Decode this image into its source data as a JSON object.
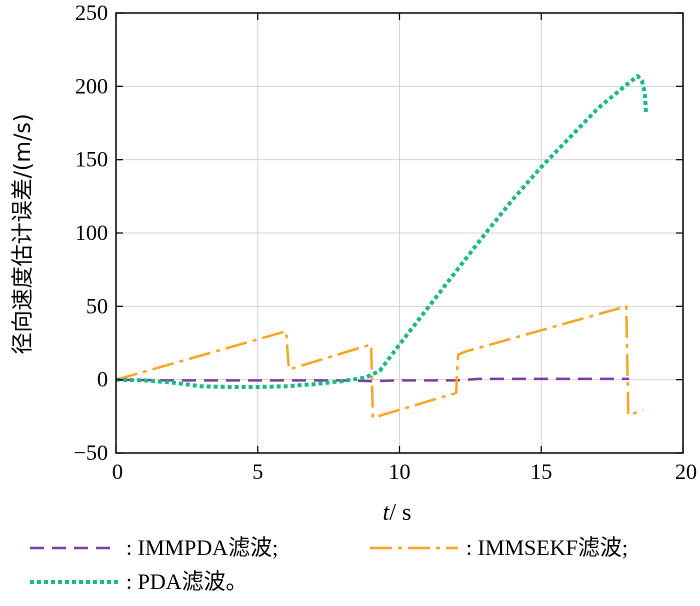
{
  "chart_data": {
    "type": "line",
    "xlabel": {
      "italic": "t",
      "rest": "/ s"
    },
    "ylabel": "径向速度估计误差/(m/s)",
    "xlim": [
      0,
      20
    ],
    "ylim": [
      -50,
      250
    ],
    "xticks": [
      0,
      5,
      10,
      15,
      20
    ],
    "yticks": [
      -50,
      0,
      50,
      100,
      150,
      200,
      250
    ],
    "xtick_labels": [
      "0",
      "5",
      "10",
      "15",
      "20"
    ],
    "ytick_labels": [
      "−50",
      "0",
      "50",
      "100",
      "150",
      "200",
      "250"
    ],
    "grid": true,
    "legend_position": "bottom",
    "series": [
      {
        "name": "IMMPDA滤波;",
        "legend_prefix": ": ",
        "color": "#7b3f9e",
        "dash": "14 8",
        "width": 2.5,
        "x": [
          0,
          2,
          4,
          6,
          8,
          9,
          10,
          12,
          12.8,
          14,
          16,
          18,
          18.1
        ],
        "y": [
          0,
          -0.5,
          -0.5,
          -0.5,
          -0.5,
          -1,
          -0.5,
          -0.5,
          0.5,
          0.5,
          0.5,
          0.5,
          0.5
        ]
      },
      {
        "name": "IMMSEKF滤波;",
        "legend_prefix": ": ",
        "color": "#f5a623",
        "dash": "22 6 4 6",
        "width": 2.5,
        "x": [
          0,
          6,
          6.05,
          6.1,
          9,
          9.03,
          9.06,
          12,
          12.03,
          12.07,
          12.3,
          18,
          18.03,
          18.07,
          18.6
        ],
        "y": [
          0,
          33,
          20,
          7,
          24,
          0,
          -26,
          -9,
          5,
          17,
          19,
          50,
          15,
          -24,
          -21
        ]
      },
      {
        "name": "PDA滤波。",
        "legend_prefix": ": ",
        "color": "#1cb88a",
        "dash": "4 3",
        "width": 4,
        "x": [
          0,
          1,
          2,
          3,
          4,
          5,
          6,
          7,
          8,
          8.8,
          9.3,
          10,
          11,
          12,
          13,
          14,
          15,
          16,
          17,
          18,
          18.4,
          18.55,
          18.65,
          18.7
        ],
        "y": [
          0,
          -0.5,
          -2,
          -4.5,
          -5,
          -5,
          -4.5,
          -3,
          -1,
          1.5,
          6,
          24,
          49,
          74,
          99,
          123,
          145,
          165,
          185,
          201,
          207,
          204,
          196,
          181
        ]
      }
    ]
  }
}
